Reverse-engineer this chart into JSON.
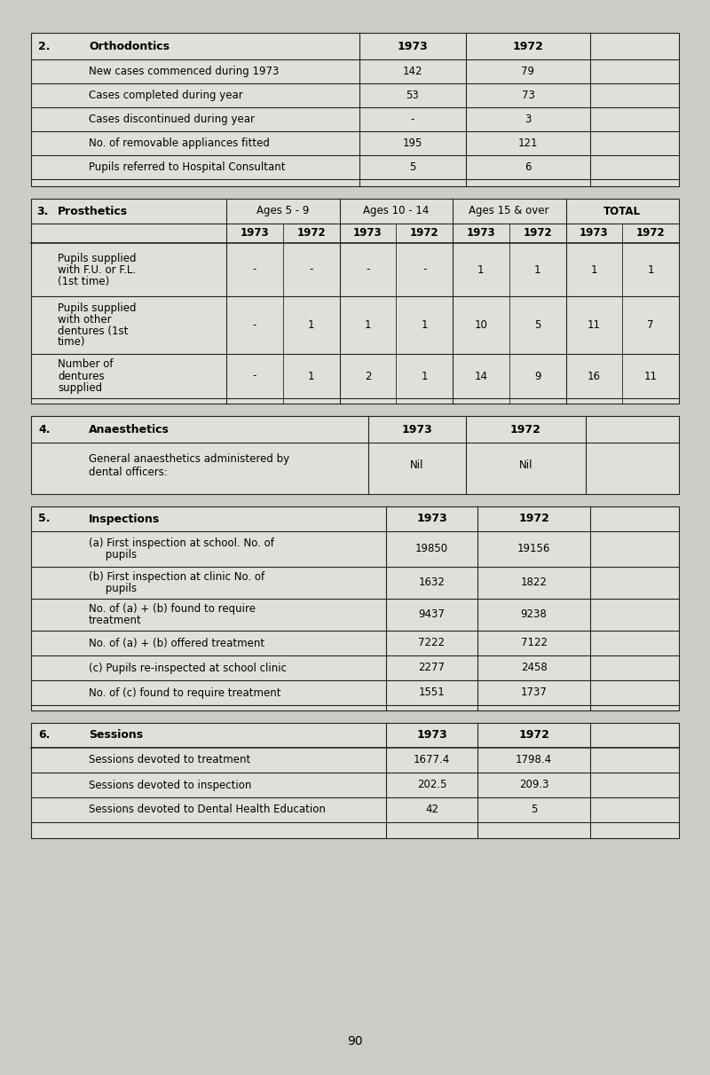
{
  "bg_color": "#ccccc8",
  "table_bg": "#e0e0db",
  "line_color": "#222222",
  "page_number": "90",
  "section2": {
    "title": "2.",
    "heading": "Orthodontics",
    "col1973": "1973",
    "col1972": "1972",
    "rows": [
      {
        "label": "New cases commenced during 1973",
        "v1973": "142",
        "v1972": "79"
      },
      {
        "label": "Cases completed during year",
        "v1973": "53",
        "v1972": "73"
      },
      {
        "label": "Cases discontinued during year",
        "v1973": "-",
        "v1972": "3"
      },
      {
        "label": "No. of removable appliances fitted",
        "v1973": "195",
        "v1972": "121"
      },
      {
        "label": "Pupils referred to Hospital Consultant",
        "v1973": "5",
        "v1972": "6"
      }
    ]
  },
  "section3": {
    "title": "3.",
    "heading": "Prosthetics",
    "age_groups": [
      "Ages 5 - 9",
      "Ages 10 - 14",
      "Ages 15 & over",
      "TOTAL"
    ],
    "years": [
      "1973",
      "1972",
      "1973",
      "1972",
      "1973",
      "1972",
      "1973",
      "1972"
    ],
    "rows": [
      {
        "label": "Pupils supplied\nwith F.U. or F.L.\n(1st time)",
        "values": [
          "-",
          "-",
          "-",
          "-",
          "1",
          "1",
          "1",
          "1"
        ]
      },
      {
        "label": "Pupils supplied\nwith other\ndentures (1st\ntime)",
        "values": [
          "-",
          "1",
          "1",
          "1",
          "10",
          "5",
          "11",
          "7"
        ]
      },
      {
        "label": "Number of\ndentures\nsupplied",
        "values": [
          "-",
          "1",
          "2",
          "1",
          "14",
          "9",
          "16",
          "11"
        ]
      }
    ]
  },
  "section4": {
    "title": "4.",
    "heading": "Anaesthetics",
    "col1973": "1973",
    "col1972": "1972",
    "rows": [
      {
        "label": "General anaesthetics administered by\ndental officers:",
        "v1973": "Nil",
        "v1972": "Nil"
      }
    ]
  },
  "section5": {
    "title": "5.",
    "heading": "Inspections",
    "col1973": "1973",
    "col1972": "1972",
    "rows": [
      {
        "label": "(a) First inspection at school. No. of\n     pupils",
        "v1973": "19850",
        "v1972": "19156"
      },
      {
        "label": "(b) First inspection at clinic No. of\n     pupils",
        "v1973": "1632",
        "v1972": "1822"
      },
      {
        "label": "No. of (a) + (b) found to require\ntreatment",
        "v1973": "9437",
        "v1972": "9238"
      },
      {
        "label": "No. of (a) + (b) offered treatment",
        "v1973": "7222",
        "v1972": "7122"
      },
      {
        "label": "(c) Pupils re-inspected at school clinic",
        "v1973": "2277",
        "v1972": "2458"
      },
      {
        "label": "No. of (c) found to require treatment",
        "v1973": "1551",
        "v1972": "1737"
      }
    ]
  },
  "section6": {
    "title": "6.",
    "heading": "Sessions",
    "col1973": "1973",
    "col1972": "1972",
    "rows": [
      {
        "label": "Sessions devoted to treatment",
        "v1973": "1677.4",
        "v1972": "1798.4"
      },
      {
        "label": "Sessions devoted to inspection",
        "v1973": "202.5",
        "v1972": "209.3"
      },
      {
        "label": "Sessions devoted to Dental Health Education",
        "v1973": "42",
        "v1972": "5"
      }
    ]
  }
}
